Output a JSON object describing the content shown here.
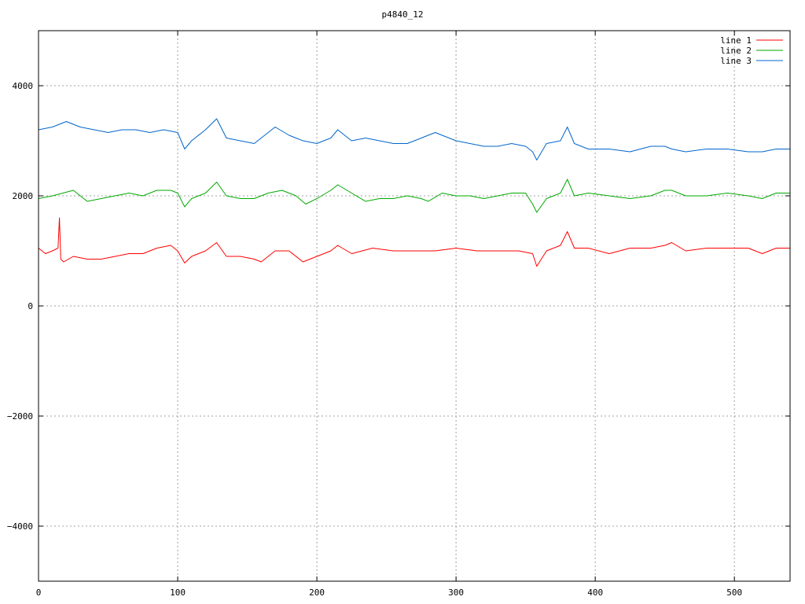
{
  "chart_data": {
    "type": "line",
    "title": "p4840_12",
    "xlabel": "",
    "ylabel": "",
    "xlim": [
      0,
      540
    ],
    "ylim": [
      -5000,
      5000
    ],
    "xticks": [
      0,
      100,
      200,
      300,
      400,
      500
    ],
    "yticks": [
      -4000,
      -2000,
      0,
      2000,
      4000
    ],
    "ytick_labels": [
      "−4000",
      "−2000",
      "0",
      "2000",
      "4000"
    ],
    "grid": true,
    "legend_position": "top-right",
    "series": [
      {
        "name": "line 1",
        "color": "#ff0000",
        "x": [
          0,
          5,
          10,
          14,
          15,
          16,
          18,
          25,
          35,
          45,
          55,
          65,
          75,
          85,
          95,
          100,
          105,
          110,
          120,
          128,
          135,
          145,
          155,
          160,
          170,
          180,
          190,
          200,
          210,
          215,
          225,
          240,
          255,
          270,
          285,
          300,
          315,
          330,
          345,
          355,
          358,
          365,
          375,
          380,
          385,
          395,
          410,
          425,
          440,
          450,
          455,
          465,
          480,
          495,
          510,
          520,
          530,
          540
        ],
        "y": [
          1050,
          950,
          1000,
          1050,
          1600,
          850,
          800,
          900,
          850,
          850,
          900,
          950,
          950,
          1050,
          1100,
          1000,
          780,
          900,
          1000,
          1150,
          900,
          900,
          850,
          800,
          1000,
          1000,
          800,
          900,
          1000,
          1100,
          950,
          1050,
          1000,
          1000,
          1000,
          1050,
          1000,
          1000,
          1000,
          950,
          720,
          1000,
          1100,
          1350,
          1050,
          1050,
          950,
          1050,
          1050,
          1100,
          1150,
          1000,
          1050,
          1050,
          1050,
          950,
          1050,
          1050
        ]
      },
      {
        "name": "line 2",
        "color": "#00aa00",
        "x": [
          0,
          10,
          25,
          35,
          45,
          55,
          65,
          75,
          85,
          95,
          100,
          105,
          110,
          120,
          128,
          135,
          145,
          155,
          165,
          175,
          185,
          192,
          200,
          210,
          215,
          225,
          235,
          245,
          255,
          265,
          275,
          280,
          290,
          300,
          310,
          320,
          330,
          340,
          350,
          355,
          358,
          365,
          375,
          380,
          385,
          395,
          410,
          425,
          440,
          450,
          455,
          465,
          480,
          495,
          510,
          520,
          530,
          540
        ],
        "y": [
          1950,
          2000,
          2100,
          1900,
          1950,
          2000,
          2050,
          2000,
          2100,
          2100,
          2050,
          1800,
          1950,
          2050,
          2250,
          2000,
          1950,
          1950,
          2050,
          2100,
          2000,
          1850,
          1950,
          2100,
          2200,
          2050,
          1900,
          1950,
          1950,
          2000,
          1950,
          1900,
          2050,
          2000,
          2000,
          1950,
          2000,
          2050,
          2050,
          1850,
          1700,
          1950,
          2050,
          2300,
          2000,
          2050,
          2000,
          1950,
          2000,
          2100,
          2100,
          2000,
          2000,
          2050,
          2000,
          1950,
          2050,
          2050
        ]
      },
      {
        "name": "line 3",
        "color": "#0066cc",
        "x": [
          0,
          10,
          20,
          30,
          40,
          50,
          60,
          70,
          80,
          90,
          100,
          105,
          110,
          120,
          128,
          135,
          145,
          155,
          165,
          170,
          180,
          190,
          200,
          210,
          215,
          225,
          235,
          245,
          255,
          265,
          275,
          285,
          295,
          300,
          310,
          320,
          330,
          340,
          350,
          355,
          358,
          365,
          375,
          380,
          385,
          395,
          410,
          425,
          440,
          450,
          455,
          465,
          480,
          495,
          510,
          520,
          530,
          540
        ],
        "y": [
          3200,
          3250,
          3350,
          3250,
          3200,
          3150,
          3200,
          3200,
          3150,
          3200,
          3150,
          2850,
          3000,
          3200,
          3400,
          3050,
          3000,
          2950,
          3150,
          3250,
          3100,
          3000,
          2950,
          3050,
          3200,
          3000,
          3050,
          3000,
          2950,
          2950,
          3050,
          3150,
          3050,
          3000,
          2950,
          2900,
          2900,
          2950,
          2900,
          2800,
          2650,
          2950,
          3000,
          3250,
          2950,
          2850,
          2850,
          2800,
          2900,
          2900,
          2850,
          2800,
          2850,
          2850,
          2800,
          2800,
          2850,
          2850
        ]
      }
    ]
  }
}
